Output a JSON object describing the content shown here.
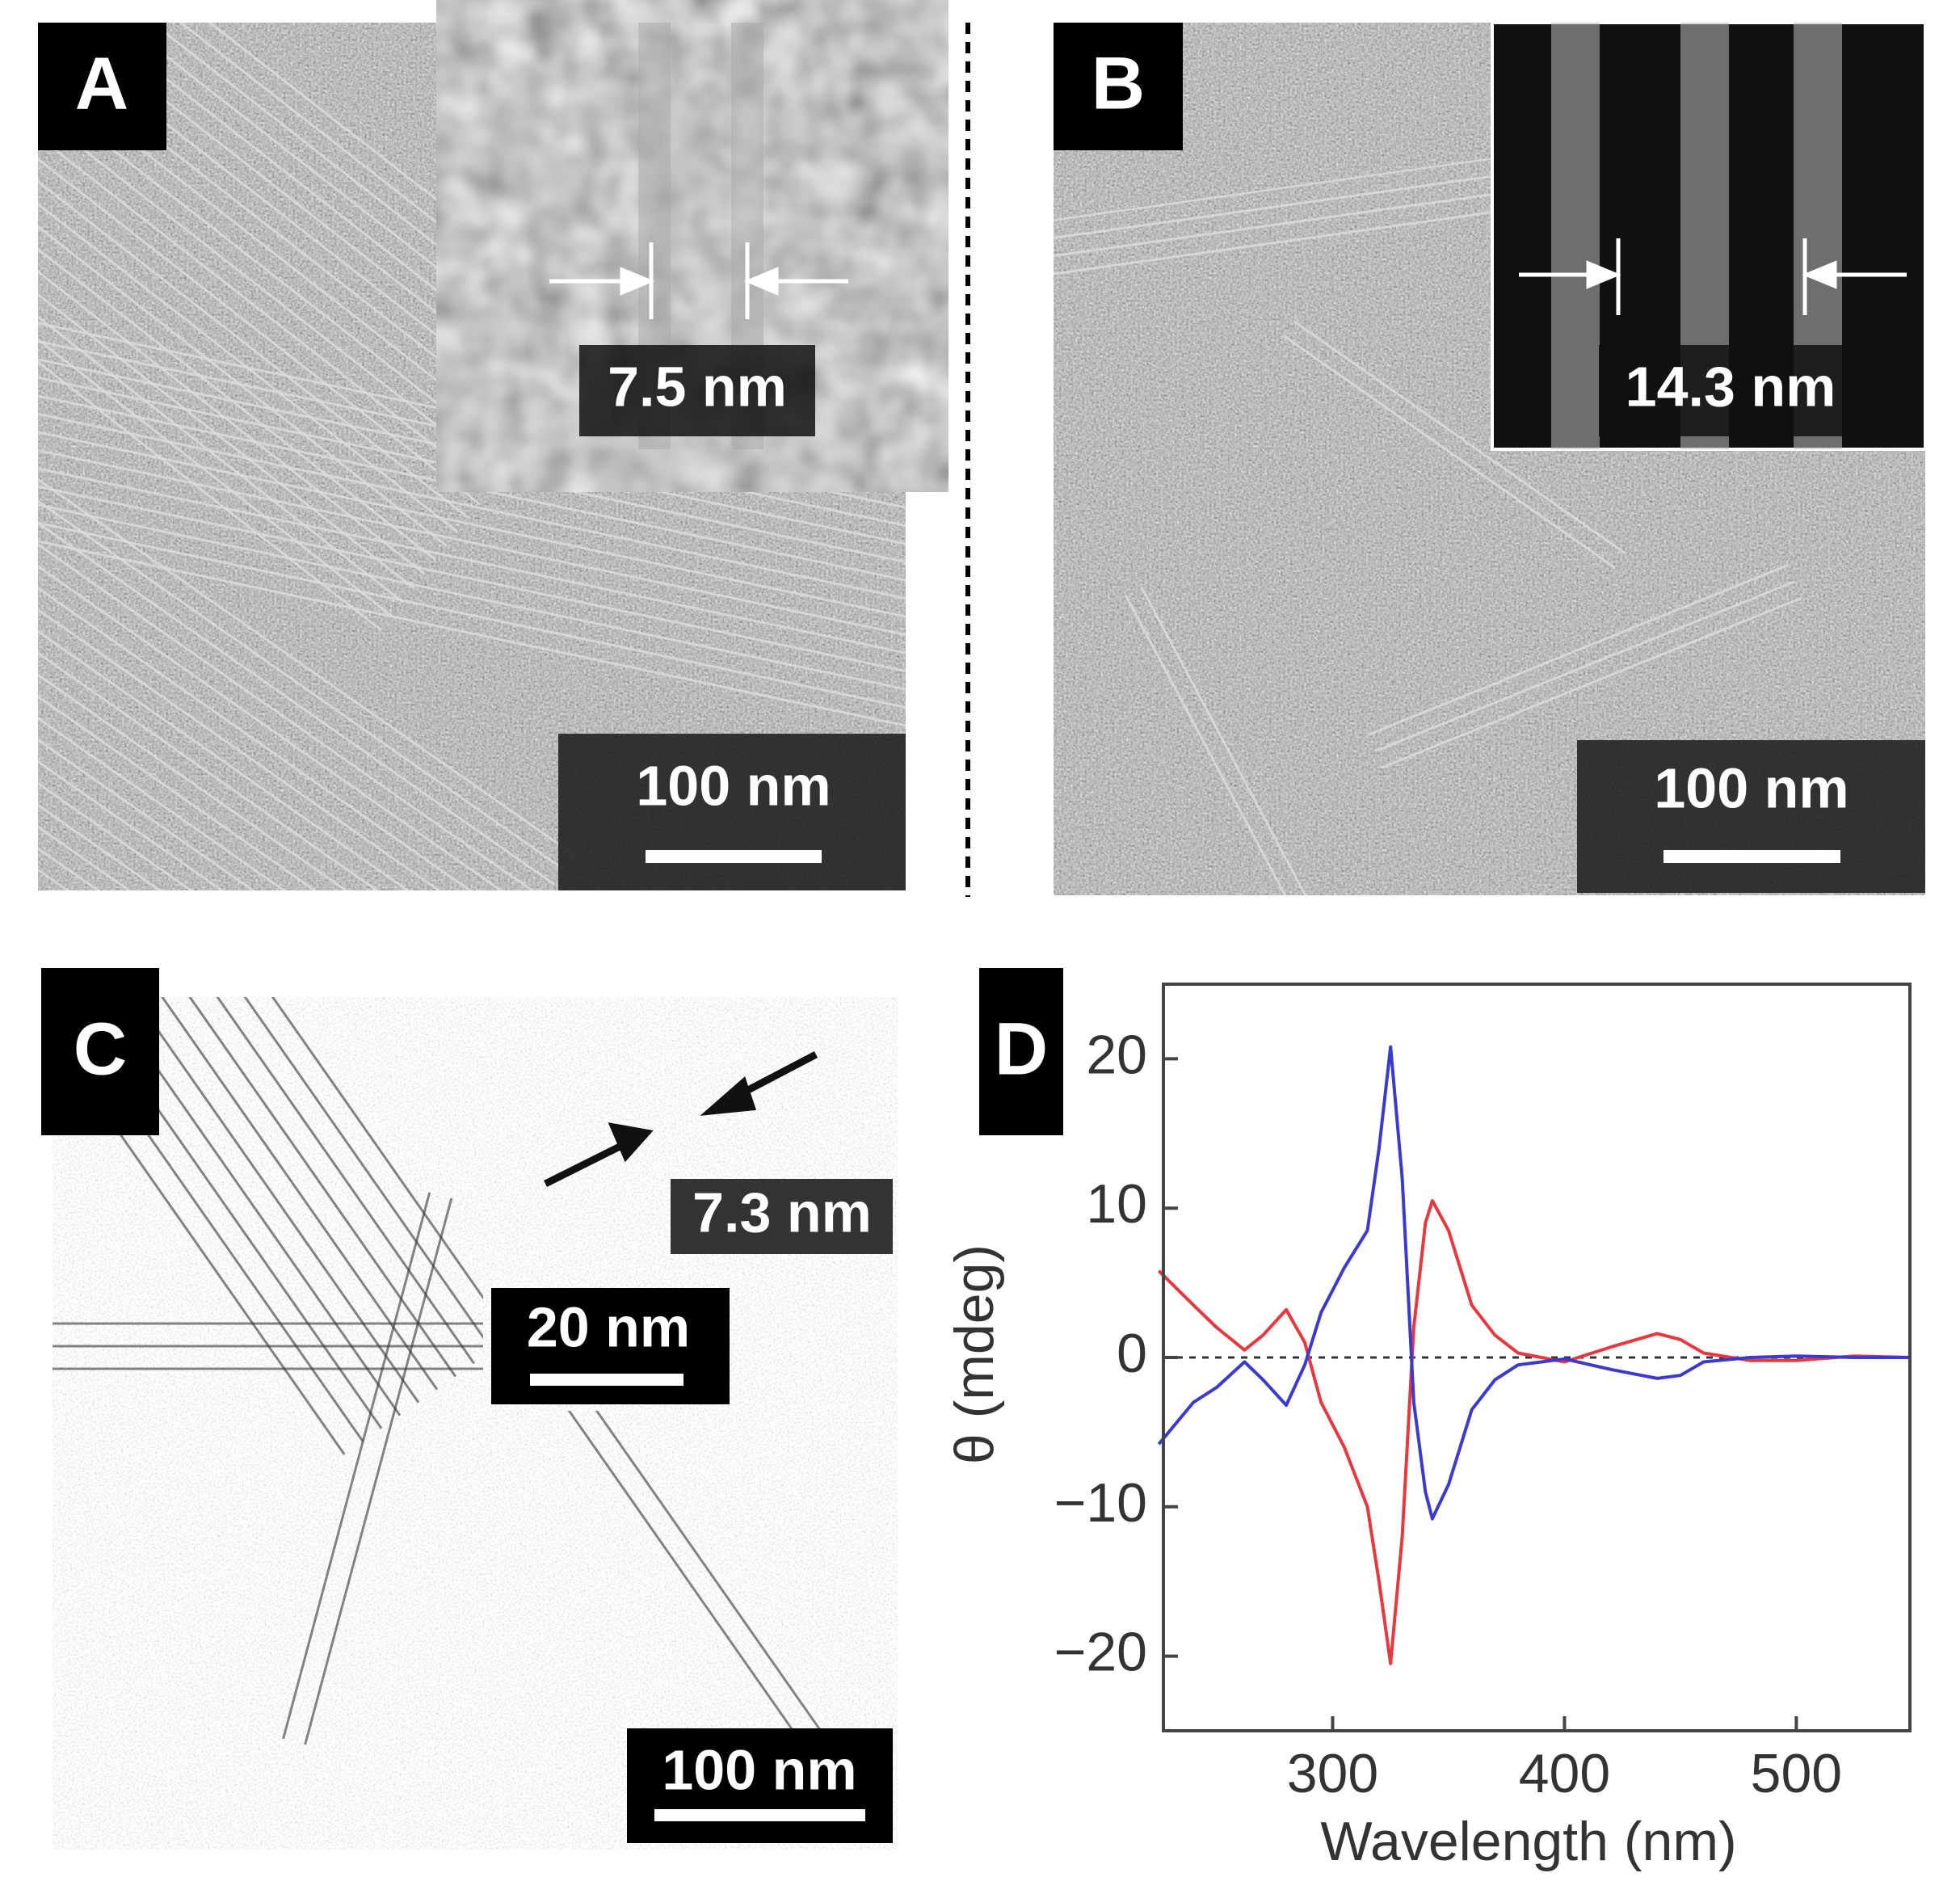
{
  "panels": [
    {
      "label": "A",
      "inset_label": "7.5 nm",
      "scale_bar": "100 nm"
    },
    {
      "label": "B",
      "inset_label": "14.3 nm",
      "scale_bar": "100 nm"
    },
    {
      "label": "C",
      "inset_label": "7.3 nm",
      "inset_scale_bar": "20 nm",
      "scale_bar": "100 nm"
    },
    {
      "label": "D"
    }
  ],
  "chart_data": {
    "type": "line",
    "xlabel": "Wavelength (nm)",
    "ylabel": "θ (mdeg)",
    "x": [
      225,
      240,
      250,
      262,
      270,
      280,
      288,
      295,
      305,
      315,
      320,
      325,
      330,
      335,
      340,
      343,
      350,
      360,
      370,
      380,
      400,
      420,
      440,
      450,
      460,
      480,
      500,
      525,
      549
    ],
    "series": [
      {
        "color": "#e8383d",
        "values": [
          5.8,
          3.5,
          2,
          0.5,
          1.5,
          3.2,
          1,
          -3,
          -6,
          -10,
          -15,
          -20.5,
          -12,
          2,
          9,
          10.5,
          8.5,
          3.5,
          1.5,
          0.3,
          -0.3,
          0.7,
          1.6,
          1.2,
          0.3,
          -0.2,
          -0.2,
          0.1,
          0
        ]
      },
      {
        "color": "#3a3ad0",
        "values": [
          -5.8,
          -3,
          -2,
          -0.3,
          -1.5,
          -3.2,
          -0.5,
          3,
          6,
          8.5,
          14,
          20.8,
          12,
          -3,
          -9,
          -10.8,
          -8.5,
          -3.5,
          -1.5,
          -0.5,
          -0.1,
          -0.8,
          -1.4,
          -1.2,
          -0.3,
          0,
          0.1,
          0,
          0
        ]
      }
    ],
    "xlim": [
      227,
      549
    ],
    "ylim": [
      -25,
      25
    ],
    "xticks": [
      300,
      400,
      500
    ],
    "yticks": [
      {
        "value": -20,
        "label": "−20"
      },
      {
        "value": -10,
        "label": "−10"
      },
      0,
      10,
      20
    ],
    "reference_line": 0
  }
}
